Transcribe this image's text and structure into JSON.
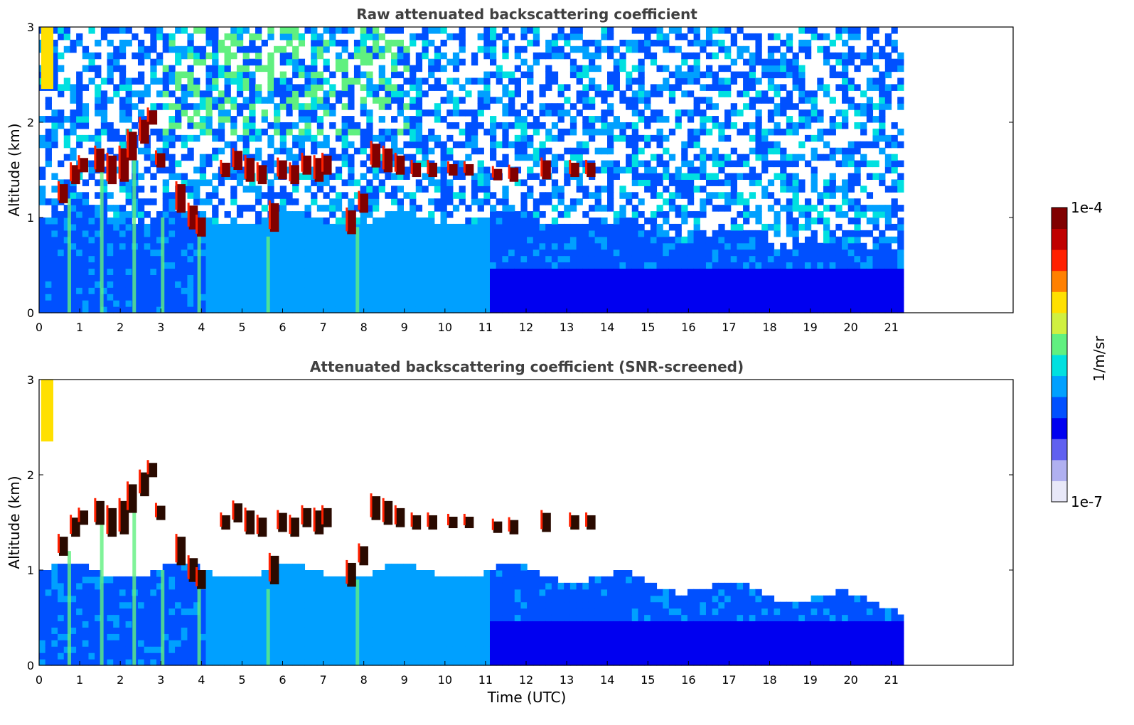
{
  "chart_data": [
    {
      "type": "heatmap",
      "title": "Raw attenuated backscattering coefficient",
      "ylabel": "Altitude (km)",
      "xlabel": "",
      "xlim": [
        0,
        24
      ],
      "ylim": [
        0,
        3
      ],
      "x_ticks": [
        "0",
        "1",
        "2",
        "3",
        "4",
        "5",
        "6",
        "7",
        "8",
        "9",
        "10",
        "11",
        "12",
        "13",
        "14",
        "15",
        "16",
        "17",
        "18",
        "19",
        "20",
        "21"
      ],
      "y_ticks": [
        "0",
        "1",
        "2",
        "3"
      ],
      "data_end_time": 21.3,
      "features": {
        "boundary_layer_top_km": 0.9,
        "cloud_layer_altitude_km": [
          1.4,
          1.8
        ],
        "noise": "high"
      }
    },
    {
      "type": "heatmap",
      "title": "Attenuated backscattering coefficient (SNR-screened)",
      "ylabel": "Altitude (km)",
      "xlabel": "Time (UTC)",
      "xlim": [
        0,
        24
      ],
      "ylim": [
        0,
        3
      ],
      "x_ticks": [
        "0",
        "1",
        "2",
        "3",
        "4",
        "5",
        "6",
        "7",
        "8",
        "9",
        "10",
        "11",
        "12",
        "13",
        "14",
        "15",
        "16",
        "17",
        "18",
        "19",
        "20",
        "21"
      ],
      "y_ticks": [
        "0",
        "1",
        "2",
        "3"
      ],
      "data_end_time": 21.3,
      "features": {
        "boundary_layer_top_km": 0.9,
        "cloud_layer_altitude_km": [
          1.4,
          1.8
        ],
        "noise": "screened"
      }
    }
  ],
  "colorbar": {
    "label": "1/m/sr",
    "max_label": "1e-4",
    "min_label": "1e-7",
    "colors": [
      "#e8e8f8",
      "#b0b0f0",
      "#6060f0",
      "#0000f0",
      "#0050ff",
      "#00a0ff",
      "#00e0e0",
      "#60f080",
      "#d0f040",
      "#ffe000",
      "#ff8000",
      "#ff2000",
      "#c00000",
      "#800000"
    ]
  }
}
